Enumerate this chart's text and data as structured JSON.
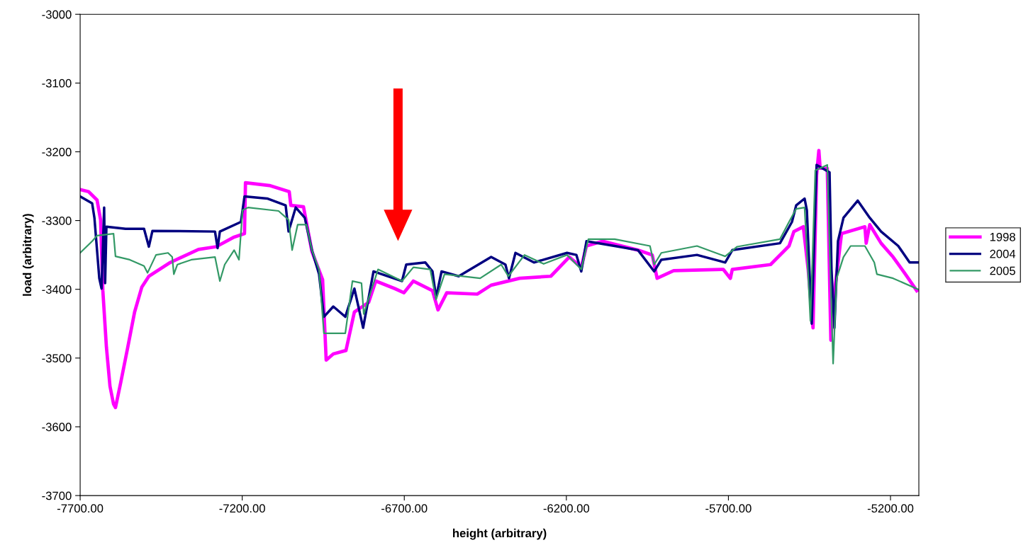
{
  "chart_data": {
    "type": "line",
    "xlabel": "height (arbitrary)",
    "ylabel": "load (arbitrary)",
    "xlim": [
      -7700,
      -5112.5
    ],
    "ylim": [
      -3700,
      -3000
    ],
    "xticks": [
      {
        "value": -7700,
        "label": "-7700.00"
      },
      {
        "value": -7200,
        "label": "-7200.00"
      },
      {
        "value": -6700,
        "label": "-6700.00"
      },
      {
        "value": -6200,
        "label": "-6200.00"
      },
      {
        "value": -5700,
        "label": "-5700.00"
      },
      {
        "value": -5200,
        "label": "-5200.00"
      }
    ],
    "yticks": [
      -3700,
      -3600,
      -3500,
      -3400,
      -3300,
      -3200,
      -3100,
      -3000
    ],
    "grid": false,
    "legend": "right",
    "marker": "none",
    "line_style": "solid",
    "series": [
      {
        "name": "1998",
        "color": "#ff00ff",
        "x": [
          -7700,
          -7674,
          -7648,
          -7637,
          -7630,
          -7619,
          -7608,
          -7597,
          -7591,
          -7575,
          -7553,
          -7532,
          -7510,
          -7488,
          -7422,
          -7335,
          -7280,
          -7225,
          -7193,
          -7190,
          -7116,
          -7055,
          -7050,
          -7011,
          -6985,
          -6952,
          -6941,
          -6919,
          -6880,
          -6854,
          -6810,
          -6788,
          -6729,
          -6701,
          -6672,
          -6613,
          -6596,
          -6569,
          -6475,
          -6432,
          -6344,
          -6248,
          -6191,
          -6154,
          -6138,
          -6088,
          -5979,
          -5935,
          -5920,
          -5869,
          -5716,
          -5694,
          -5688,
          -5570,
          -5513,
          -5498,
          -5469,
          -5454,
          -5439,
          -5428,
          -5421,
          -5417,
          -5395,
          -5384,
          -5373,
          -5351,
          -5279,
          -5275,
          -5264,
          -5229,
          -5192,
          -5154,
          -5119
        ],
        "values": [
          -3255,
          -3258,
          -3270,
          -3299,
          -3402,
          -3484,
          -3541,
          -3567,
          -3572,
          -3536,
          -3484,
          -3433,
          -3397,
          -3381,
          -3361,
          -3342,
          -3338,
          -3324,
          -3319,
          -3245,
          -3249,
          -3258,
          -3278,
          -3280,
          -3345,
          -3386,
          -3503,
          -3494,
          -3489,
          -3433,
          -3419,
          -3388,
          -3399,
          -3405,
          -3388,
          -3402,
          -3430,
          -3405,
          -3407,
          -3394,
          -3384,
          -3381,
          -3353,
          -3368,
          -3337,
          -3330,
          -3343,
          -3350,
          -3384,
          -3373,
          -3371,
          -3384,
          -3371,
          -3364,
          -3337,
          -3316,
          -3309,
          -3371,
          -3456,
          -3234,
          -3198,
          -3224,
          -3224,
          -3474,
          -3405,
          -3319,
          -3309,
          -3333,
          -3306,
          -3333,
          -3353,
          -3378,
          -3402
        ]
      },
      {
        "name": "2004",
        "color": "#000080",
        "x": [
          -7700,
          -7663,
          -7656,
          -7641,
          -7634,
          -7626,
          -7623,
          -7619,
          -7560,
          -7503,
          -7488,
          -7477,
          -7284,
          -7276,
          -7269,
          -7204,
          -7193,
          -7123,
          -7066,
          -7057,
          -7035,
          -7007,
          -6985,
          -6963,
          -6948,
          -6919,
          -6882,
          -6854,
          -6827,
          -6795,
          -6707,
          -6694,
          -6635,
          -6613,
          -6602,
          -6585,
          -6532,
          -6432,
          -6388,
          -6377,
          -6357,
          -6300,
          -6198,
          -6169,
          -6154,
          -6138,
          -6051,
          -5979,
          -5929,
          -5907,
          -5797,
          -5710,
          -5688,
          -5541,
          -5504,
          -5491,
          -5465,
          -5458,
          -5443,
          -5428,
          -5388,
          -5382,
          -5373,
          -5362,
          -5345,
          -5301,
          -5264,
          -5229,
          -5176,
          -5141,
          -5115
        ],
        "values": [
          -3265,
          -3275,
          -3296,
          -3384,
          -3399,
          -3281,
          -3391,
          -3309,
          -3312,
          -3312,
          -3338,
          -3315,
          -3316,
          -3340,
          -3316,
          -3302,
          -3265,
          -3268,
          -3278,
          -3316,
          -3281,
          -3296,
          -3343,
          -3378,
          -3440,
          -3425,
          -3440,
          -3399,
          -3456,
          -3374,
          -3388,
          -3364,
          -3361,
          -3374,
          -3412,
          -3374,
          -3381,
          -3353,
          -3364,
          -3384,
          -3347,
          -3361,
          -3347,
          -3350,
          -3374,
          -3330,
          -3337,
          -3343,
          -3374,
          -3357,
          -3350,
          -3361,
          -3343,
          -3333,
          -3302,
          -3278,
          -3268,
          -3285,
          -3450,
          -3219,
          -3230,
          -3371,
          -3456,
          -3330,
          -3296,
          -3271,
          -3296,
          -3316,
          -3337,
          -3361,
          -3361
        ]
      },
      {
        "name": "2005",
        "color": "#339966",
        "x": [
          -7700,
          -7663,
          -7648,
          -7597,
          -7591,
          -7547,
          -7503,
          -7492,
          -7466,
          -7429,
          -7416,
          -7411,
          -7400,
          -7357,
          -7284,
          -7269,
          -7254,
          -7225,
          -7210,
          -7199,
          -7182,
          -7088,
          -7057,
          -7046,
          -7029,
          -7002,
          -6985,
          -6963,
          -6948,
          -6882,
          -6860,
          -6832,
          -6825,
          -6781,
          -6707,
          -6672,
          -6620,
          -6602,
          -6576,
          -6466,
          -6401,
          -6379,
          -6329,
          -6270,
          -6198,
          -6154,
          -6132,
          -6051,
          -5942,
          -5929,
          -5907,
          -5797,
          -5710,
          -5673,
          -5541,
          -5513,
          -5491,
          -5465,
          -5458,
          -5447,
          -5432,
          -5395,
          -5388,
          -5377,
          -5366,
          -5345,
          -5323,
          -5279,
          -5250,
          -5242,
          -5192,
          -5115
        ],
        "values": [
          -3347,
          -3330,
          -3322,
          -3319,
          -3352,
          -3357,
          -3366,
          -3376,
          -3350,
          -3347,
          -3353,
          -3378,
          -3364,
          -3357,
          -3353,
          -3388,
          -3364,
          -3343,
          -3357,
          -3285,
          -3281,
          -3286,
          -3299,
          -3343,
          -3306,
          -3306,
          -3343,
          -3371,
          -3464,
          -3464,
          -3388,
          -3391,
          -3436,
          -3371,
          -3388,
          -3368,
          -3371,
          -3415,
          -3378,
          -3384,
          -3364,
          -3381,
          -3350,
          -3363,
          -3350,
          -3371,
          -3327,
          -3327,
          -3337,
          -3364,
          -3347,
          -3337,
          -3352,
          -3338,
          -3327,
          -3302,
          -3283,
          -3281,
          -3343,
          -3446,
          -3227,
          -3219,
          -3337,
          -3508,
          -3384,
          -3353,
          -3337,
          -3337,
          -3361,
          -3378,
          -3384,
          -3400
        ]
      }
    ]
  }
}
